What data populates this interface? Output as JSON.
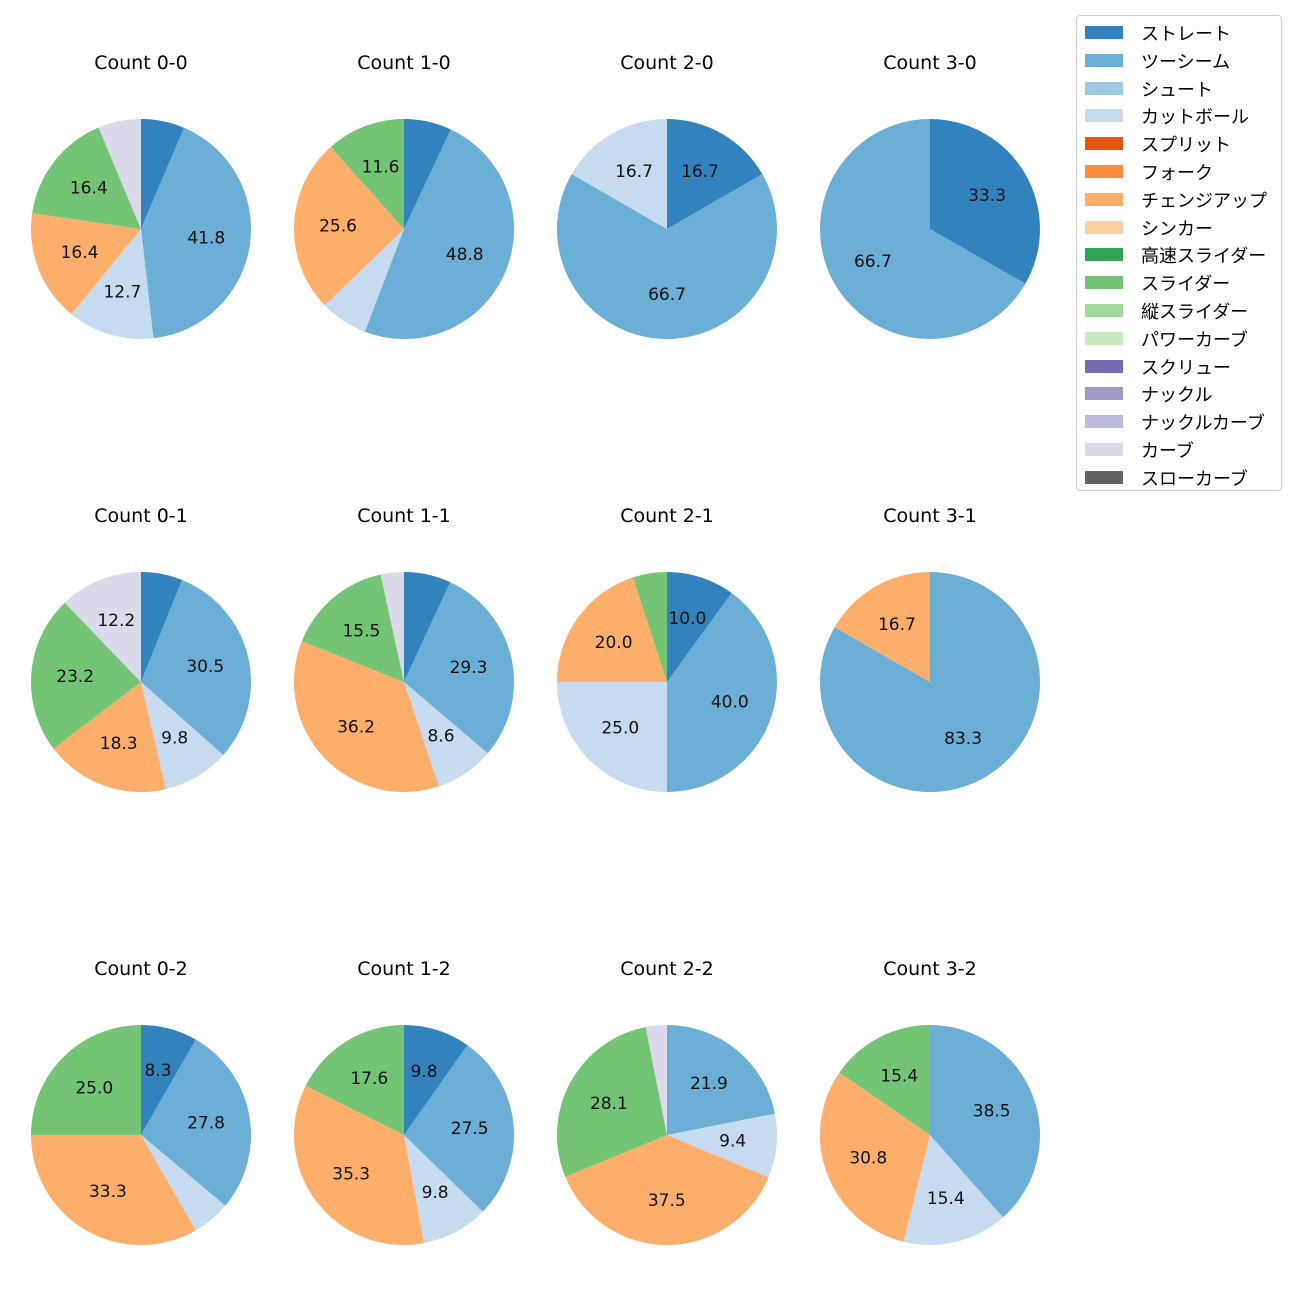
{
  "chart_data": {
    "type": "pie",
    "categories": [
      "ストレート",
      "ツーシーム",
      "シュート",
      "カットボール",
      "スプリット",
      "フォーク",
      "チェンジアップ",
      "シンカー",
      "高速スライダー",
      "スライダー",
      "縦スライダー",
      "パワーカーブ",
      "スクリュー",
      "ナックル",
      "ナックルカーブ",
      "カーブ",
      "スローカーブ"
    ],
    "colors": [
      "#3182bd",
      "#6baed6",
      "#9ecae1",
      "#c6dbef",
      "#e6550d",
      "#fd8d3c",
      "#fdae6b",
      "#fdd0a2",
      "#31a354",
      "#74c476",
      "#a1d99b",
      "#c7e9c0",
      "#756bb1",
      "#9e9ac8",
      "#bcbddc",
      "#dadaeb",
      "#636363"
    ],
    "charts": [
      {
        "title": "Count 0-0",
        "values": [
          {
            "c": "ストレート",
            "v": 6.4
          },
          {
            "c": "ツーシーム",
            "v": 41.8,
            "label": "41.8"
          },
          {
            "c": "カットボール",
            "v": 12.7,
            "label": "12.7"
          },
          {
            "c": "チェンジアップ",
            "v": 16.4,
            "label": "16.4"
          },
          {
            "c": "スライダー",
            "v": 16.4,
            "label": "16.4"
          },
          {
            "c": "カーブ",
            "v": 6.3
          }
        ]
      },
      {
        "title": "Count 1-0",
        "values": [
          {
            "c": "ストレート",
            "v": 7.0
          },
          {
            "c": "ツーシーム",
            "v": 48.8,
            "label": "48.8"
          },
          {
            "c": "カットボール",
            "v": 7.0
          },
          {
            "c": "チェンジアップ",
            "v": 25.6,
            "label": "25.6"
          },
          {
            "c": "スライダー",
            "v": 11.6,
            "label": "11.6"
          }
        ]
      },
      {
        "title": "Count 2-0",
        "values": [
          {
            "c": "ストレート",
            "v": 16.7,
            "label": "16.7"
          },
          {
            "c": "ツーシーム",
            "v": 66.7,
            "label": "66.7"
          },
          {
            "c": "カットボール",
            "v": 16.7,
            "label": "16.7"
          }
        ]
      },
      {
        "title": "Count 3-0",
        "values": [
          {
            "c": "ストレート",
            "v": 33.3,
            "label": "33.3"
          },
          {
            "c": "ツーシーム",
            "v": 66.7,
            "label": "66.7"
          }
        ]
      },
      {
        "title": "Count 0-1",
        "values": [
          {
            "c": "ストレート",
            "v": 6.1
          },
          {
            "c": "ツーシーム",
            "v": 30.5,
            "label": "30.5"
          },
          {
            "c": "カットボール",
            "v": 9.8,
            "label": "9.8"
          },
          {
            "c": "チェンジアップ",
            "v": 18.3,
            "label": "18.3"
          },
          {
            "c": "スライダー",
            "v": 23.2,
            "label": "23.2"
          },
          {
            "c": "カーブ",
            "v": 12.2,
            "label": "12.2"
          }
        ]
      },
      {
        "title": "Count 1-1",
        "values": [
          {
            "c": "ストレート",
            "v": 6.9
          },
          {
            "c": "ツーシーム",
            "v": 29.3,
            "label": "29.3"
          },
          {
            "c": "カットボール",
            "v": 8.6,
            "label": "8.6"
          },
          {
            "c": "チェンジアップ",
            "v": 36.2,
            "label": "36.2"
          },
          {
            "c": "スライダー",
            "v": 15.5,
            "label": "15.5"
          },
          {
            "c": "カーブ",
            "v": 3.4
          }
        ]
      },
      {
        "title": "Count 2-1",
        "values": [
          {
            "c": "ストレート",
            "v": 10.0,
            "label": "10.0"
          },
          {
            "c": "ツーシーム",
            "v": 40.0,
            "label": "40.0"
          },
          {
            "c": "カットボール",
            "v": 25.0,
            "label": "25.0"
          },
          {
            "c": "チェンジアップ",
            "v": 20.0,
            "label": "20.0"
          },
          {
            "c": "スライダー",
            "v": 5.0
          }
        ]
      },
      {
        "title": "Count 3-1",
        "values": [
          {
            "c": "ツーシーム",
            "v": 83.3,
            "label": "83.3"
          },
          {
            "c": "チェンジアップ",
            "v": 16.7,
            "label": "16.7"
          }
        ]
      },
      {
        "title": "Count 0-2",
        "values": [
          {
            "c": "ストレート",
            "v": 8.3,
            "label": "8.3"
          },
          {
            "c": "ツーシーム",
            "v": 27.8,
            "label": "27.8"
          },
          {
            "c": "カットボール",
            "v": 5.6
          },
          {
            "c": "チェンジアップ",
            "v": 33.3,
            "label": "33.3"
          },
          {
            "c": "スライダー",
            "v": 25.0,
            "label": "25.0"
          }
        ]
      },
      {
        "title": "Count 1-2",
        "values": [
          {
            "c": "ストレート",
            "v": 9.8,
            "label": "9.8"
          },
          {
            "c": "ツーシーム",
            "v": 27.5,
            "label": "27.5"
          },
          {
            "c": "カットボール",
            "v": 9.8,
            "label": "9.8"
          },
          {
            "c": "チェンジアップ",
            "v": 35.3,
            "label": "35.3"
          },
          {
            "c": "スライダー",
            "v": 17.6,
            "label": "17.6"
          }
        ]
      },
      {
        "title": "Count 2-2",
        "values": [
          {
            "c": "ツーシーム",
            "v": 21.9,
            "label": "21.9"
          },
          {
            "c": "カットボール",
            "v": 9.4,
            "label": "9.4"
          },
          {
            "c": "チェンジアップ",
            "v": 37.5,
            "label": "37.5"
          },
          {
            "c": "スライダー",
            "v": 28.1,
            "label": "28.1"
          },
          {
            "c": "カーブ",
            "v": 3.1
          }
        ]
      },
      {
        "title": "Count 3-2",
        "values": [
          {
            "c": "ツーシーム",
            "v": 38.5,
            "label": "38.5"
          },
          {
            "c": "カットボール",
            "v": 15.4,
            "label": "15.4"
          },
          {
            "c": "チェンジアップ",
            "v": 30.8,
            "label": "30.8"
          },
          {
            "c": "スライダー",
            "v": 15.4,
            "label": "15.4"
          }
        ]
      }
    ],
    "legend": {
      "position": "top-right"
    }
  }
}
